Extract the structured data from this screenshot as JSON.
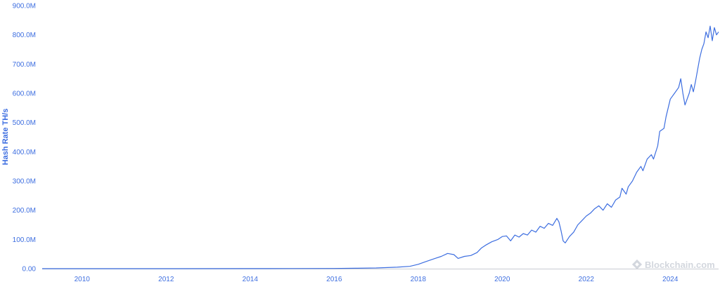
{
  "chart_data": {
    "type": "line",
    "title": "",
    "xlabel": "",
    "ylabel": "Hash Rate TH/s",
    "xlim": [
      2009.05,
      2025.15
    ],
    "ylim": [
      0,
      900000000
    ],
    "y_ticks": [
      {
        "value": 0,
        "label": "0.00"
      },
      {
        "value": 100000000,
        "label": "100.0M"
      },
      {
        "value": 200000000,
        "label": "200.0M"
      },
      {
        "value": 300000000,
        "label": "300.0M"
      },
      {
        "value": 400000000,
        "label": "400.0M"
      },
      {
        "value": 500000000,
        "label": "500.0M"
      },
      {
        "value": 600000000,
        "label": "600.0M"
      },
      {
        "value": 700000000,
        "label": "700.0M"
      },
      {
        "value": 800000000,
        "label": "800.0M"
      },
      {
        "value": 900000000,
        "label": "900.0M"
      }
    ],
    "x_ticks": [
      {
        "value": 2010,
        "label": "2010"
      },
      {
        "value": 2012,
        "label": "2012"
      },
      {
        "value": 2014,
        "label": "2014"
      },
      {
        "value": 2016,
        "label": "2016"
      },
      {
        "value": 2018,
        "label": "2018"
      },
      {
        "value": 2020,
        "label": "2020"
      },
      {
        "value": 2022,
        "label": "2022"
      },
      {
        "value": 2024,
        "label": "2024"
      }
    ],
    "grid": false,
    "legend": "none",
    "line_color": "#3d6ee0",
    "series": [
      {
        "values": [
          [
            2009.05,
            0
          ],
          [
            2012.0,
            0
          ],
          [
            2014.0,
            300000
          ],
          [
            2015.0,
            400000
          ],
          [
            2016.0,
            800000
          ],
          [
            2016.5,
            1500000
          ],
          [
            2017.0,
            2500000
          ],
          [
            2017.5,
            5000000
          ],
          [
            2017.8,
            8000000
          ],
          [
            2018.0,
            15000000
          ],
          [
            2018.2,
            25000000
          ],
          [
            2018.4,
            35000000
          ],
          [
            2018.55,
            42000000
          ],
          [
            2018.7,
            52000000
          ],
          [
            2018.85,
            48000000
          ],
          [
            2018.95,
            35000000
          ],
          [
            2019.1,
            42000000
          ],
          [
            2019.25,
            45000000
          ],
          [
            2019.4,
            55000000
          ],
          [
            2019.5,
            70000000
          ],
          [
            2019.6,
            80000000
          ],
          [
            2019.75,
            92000000
          ],
          [
            2019.9,
            100000000
          ],
          [
            2020.0,
            110000000
          ],
          [
            2020.1,
            112000000
          ],
          [
            2020.2,
            95000000
          ],
          [
            2020.3,
            115000000
          ],
          [
            2020.4,
            108000000
          ],
          [
            2020.5,
            120000000
          ],
          [
            2020.6,
            115000000
          ],
          [
            2020.7,
            132000000
          ],
          [
            2020.8,
            125000000
          ],
          [
            2020.9,
            145000000
          ],
          [
            2021.0,
            138000000
          ],
          [
            2021.1,
            155000000
          ],
          [
            2021.2,
            148000000
          ],
          [
            2021.3,
            172000000
          ],
          [
            2021.35,
            160000000
          ],
          [
            2021.4,
            130000000
          ],
          [
            2021.45,
            95000000
          ],
          [
            2021.5,
            88000000
          ],
          [
            2021.6,
            110000000
          ],
          [
            2021.7,
            125000000
          ],
          [
            2021.8,
            150000000
          ],
          [
            2021.9,
            165000000
          ],
          [
            2022.0,
            180000000
          ],
          [
            2022.1,
            190000000
          ],
          [
            2022.2,
            205000000
          ],
          [
            2022.3,
            215000000
          ],
          [
            2022.4,
            200000000
          ],
          [
            2022.5,
            222000000
          ],
          [
            2022.6,
            210000000
          ],
          [
            2022.7,
            235000000
          ],
          [
            2022.8,
            245000000
          ],
          [
            2022.85,
            275000000
          ],
          [
            2022.95,
            255000000
          ],
          [
            2023.0,
            280000000
          ],
          [
            2023.1,
            300000000
          ],
          [
            2023.2,
            330000000
          ],
          [
            2023.3,
            350000000
          ],
          [
            2023.35,
            335000000
          ],
          [
            2023.45,
            375000000
          ],
          [
            2023.55,
            390000000
          ],
          [
            2023.6,
            375000000
          ],
          [
            2023.7,
            420000000
          ],
          [
            2023.75,
            470000000
          ],
          [
            2023.85,
            480000000
          ],
          [
            2023.9,
            520000000
          ],
          [
            2024.0,
            580000000
          ],
          [
            2024.1,
            600000000
          ],
          [
            2024.2,
            620000000
          ],
          [
            2024.25,
            650000000
          ],
          [
            2024.3,
            600000000
          ],
          [
            2024.35,
            560000000
          ],
          [
            2024.45,
            600000000
          ],
          [
            2024.5,
            630000000
          ],
          [
            2024.55,
            605000000
          ],
          [
            2024.6,
            640000000
          ],
          [
            2024.65,
            680000000
          ],
          [
            2024.7,
            720000000
          ],
          [
            2024.75,
            750000000
          ],
          [
            2024.8,
            770000000
          ],
          [
            2024.85,
            810000000
          ],
          [
            2024.9,
            790000000
          ],
          [
            2024.95,
            830000000
          ],
          [
            2025.0,
            780000000
          ],
          [
            2025.05,
            825000000
          ],
          [
            2025.1,
            800000000
          ],
          [
            2025.15,
            810000000
          ]
        ]
      }
    ]
  },
  "watermark": {
    "label": "Blockchain.com",
    "icon": "blockchain-logo-icon"
  }
}
